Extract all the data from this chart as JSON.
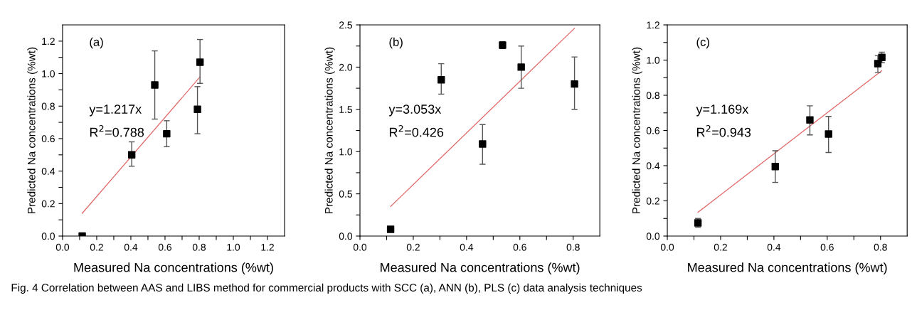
{
  "chart_data": [
    {
      "type": "scatter",
      "xlabel": "Measured Na concentrations (%wt)",
      "ylabel": "Predicted Na concentrations (%wt)",
      "annotations": [
        "(a)",
        "y=1.217x",
        "R$^{2}$=0.788",
        "Fig. 4 Correlation between AAS and LIBS method for commercial products with SCC (a), ANN (b), PLS (c) data analysis techniques"
      ],
      "xlim": [
        0,
        1.3
      ],
      "ylim": [
        0,
        1.3
      ],
      "xticks": [
        {
          "value": 0,
          "label": "0.0"
        },
        {
          "value": 0.1,
          "label": null
        },
        {
          "value": 0.2,
          "label": "0.2"
        },
        {
          "value": 0.3,
          "label": null
        },
        {
          "value": 0.4,
          "label": "0.4"
        },
        {
          "value": 0.5,
          "label": null
        },
        {
          "value": 0.6,
          "label": "0.6"
        },
        {
          "value": 0.7,
          "label": null
        },
        {
          "value": 0.8,
          "label": "0.8"
        },
        {
          "value": 0.9,
          "label": null
        },
        {
          "value": 1.0,
          "label": "1.0"
        },
        {
          "value": 1.1,
          "label": null
        },
        {
          "value": 1.2,
          "label": "1.2"
        }
      ],
      "yticks": [
        {
          "value": 0,
          "label": "0.0"
        },
        {
          "value": 0.1,
          "label": null
        },
        {
          "value": 0.2,
          "label": "0.2"
        },
        {
          "value": 0.3,
          "label": null
        },
        {
          "value": 0.4,
          "label": "0.4"
        },
        {
          "value": 0.5,
          "label": null
        },
        {
          "value": 0.6,
          "label": "0.6"
        },
        {
          "value": 0.7,
          "label": null
        },
        {
          "value": 0.8,
          "label": "0.8"
        },
        {
          "value": 0.9,
          "label": null
        },
        {
          "value": 1.0,
          "label": "1.0"
        },
        {
          "value": 1.1,
          "label": null
        },
        {
          "value": 1.2,
          "label": "1.2"
        }
      ],
      "grid": false,
      "legend": false,
      "series": [
        {
          "marker": "square",
          "color": "#000000",
          "x": [
            0.115,
            0.405,
            0.54,
            0.61,
            0.79,
            0.805
          ],
          "values": [
            0.0,
            0.5,
            0.93,
            0.63,
            0.78,
            1.07
          ],
          "errors": [
            null,
            [
              0.43,
              0.58
            ],
            [
              0.72,
              1.14
            ],
            [
              0.55,
              0.71
            ],
            [
              0.63,
              0.92
            ],
            [
              0.94,
              1.21
            ]
          ]
        },
        {
          "type": "line",
          "marker": "none",
          "color": "#e06666",
          "x": [
            0.115,
            0.805
          ],
          "values": [
            0.14,
            0.98
          ]
        }
      ]
    },
    {
      "type": "scatter",
      "xlabel": "Measured Na concentrations (%wt)",
      "ylabel": "Predicted Na concentrations (%wt)",
      "annotations": [
        "(b)",
        "y=3.053x",
        "R$^{2}$=0.426"
      ],
      "xlim": [
        0,
        0.9
      ],
      "ylim": [
        0,
        2.5
      ],
      "xticks": [
        {
          "value": 0,
          "label": "0.0"
        },
        {
          "value": 0.1,
          "label": null
        },
        {
          "value": 0.2,
          "label": "0.2"
        },
        {
          "value": 0.3,
          "label": null
        },
        {
          "value": 0.4,
          "label": "0.4"
        },
        {
          "value": 0.5,
          "label": null
        },
        {
          "value": 0.6,
          "label": "0.6"
        },
        {
          "value": 0.7,
          "label": null
        },
        {
          "value": 0.8,
          "label": "0.8"
        }
      ],
      "yticks": [
        {
          "value": 0,
          "label": "0.0"
        },
        {
          "value": 0.25,
          "label": null
        },
        0.5,
        {
          "value": 0.75,
          "label": null
        },
        {
          "value": 1,
          "label": "1.0"
        },
        {
          "value": 1.25,
          "label": null
        },
        1.5,
        {
          "value": 1.75,
          "label": null
        },
        {
          "value": 2,
          "label": "2.0"
        },
        {
          "value": 2.25,
          "label": null
        },
        2.5
      ],
      "grid": false,
      "legend": false,
      "series": [
        {
          "marker": "square",
          "color": "#000000",
          "x": [
            0.115,
            0.305,
            0.46,
            0.535,
            0.605,
            0.805
          ],
          "values": [
            0.08,
            1.85,
            1.09,
            2.26,
            2.0,
            1.8
          ],
          "errors": [
            null,
            [
              1.68,
              2.04
            ],
            [
              0.85,
              1.32
            ],
            [
              2.22,
              2.3
            ],
            [
              1.75,
              2.25
            ],
            [
              1.5,
              2.12
            ]
          ]
        },
        {
          "type": "line",
          "marker": "none",
          "color": "#e06666",
          "x": [
            0.115,
            0.805
          ],
          "values": [
            0.35,
            2.46
          ]
        }
      ]
    },
    {
      "type": "scatter",
      "xlabel": "Measured Na concentrations (%wt)",
      "ylabel": "Predicted Na concentrations (%wt)",
      "annotations": [
        "(c)",
        "y=1.169x",
        "R$^{2}$=0.943"
      ],
      "xlim": [
        0,
        0.9
      ],
      "ylim": [
        0,
        1.2
      ],
      "xticks": [
        {
          "value": 0,
          "label": "0.0"
        },
        {
          "value": 0.1,
          "label": null
        },
        {
          "value": 0.2,
          "label": "0.2"
        },
        {
          "value": 0.3,
          "label": null
        },
        {
          "value": 0.4,
          "label": "0.4"
        },
        {
          "value": 0.5,
          "label": null
        },
        {
          "value": 0.6,
          "label": "0.6"
        },
        {
          "value": 0.7,
          "label": null
        },
        {
          "value": 0.8,
          "label": "0.8"
        }
      ],
      "yticks": [
        {
          "value": 0,
          "label": "0.0"
        },
        {
          "value": 0.1,
          "label": null
        },
        {
          "value": 0.2,
          "label": "0.2"
        },
        {
          "value": 0.3,
          "label": null
        },
        {
          "value": 0.4,
          "label": "0.4"
        },
        {
          "value": 0.5,
          "label": null
        },
        {
          "value": 0.6,
          "label": "0.6"
        },
        {
          "value": 0.7,
          "label": null
        },
        {
          "value": 0.8,
          "label": "0.8"
        },
        {
          "value": 0.9,
          "label": null
        },
        {
          "value": 1.0,
          "label": "1.0"
        },
        {
          "value": 1.1,
          "label": null
        },
        {
          "value": 1.2,
          "label": "1.2"
        }
      ],
      "grid": false,
      "legend": false,
      "series": [
        {
          "marker": "square",
          "color": "#000000",
          "x": [
            0.115,
            0.405,
            0.535,
            0.605,
            0.79,
            0.805
          ],
          "values": [
            0.075,
            0.395,
            0.66,
            0.58,
            0.98,
            1.015
          ],
          "errors": [
            [
              0.05,
              0.1
            ],
            [
              0.305,
              0.485
            ],
            [
              0.575,
              0.74
            ],
            [
              0.475,
              0.68
            ],
            [
              0.93,
              1.025
            ],
            [
              0.985,
              1.045
            ]
          ]
        },
        {
          "type": "line",
          "marker": "none",
          "color": "#e06666",
          "x": [
            0.115,
            0.805
          ],
          "values": [
            0.135,
            0.94
          ]
        }
      ]
    }
  ]
}
